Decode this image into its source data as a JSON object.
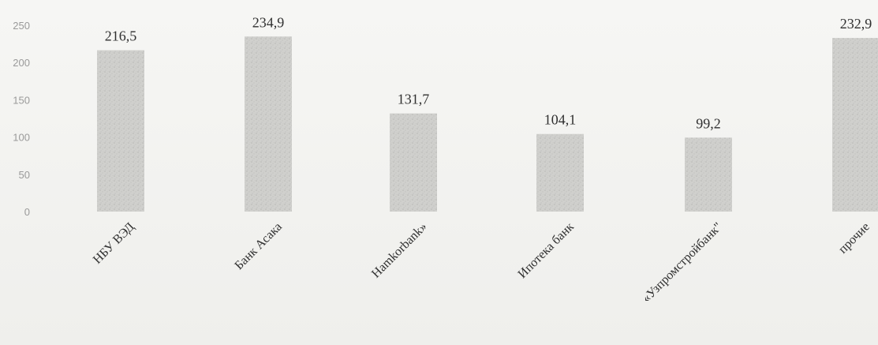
{
  "chart_data": {
    "type": "bar",
    "title": "",
    "xlabel": "",
    "ylabel": "",
    "categories": [
      "НБУ ВЭД",
      "Банк Асака",
      "Hamkorbank»",
      "Ипотека банк",
      "«Узпромстройбанк\"",
      "прочие"
    ],
    "values": [
      216.5,
      234.9,
      131.7,
      104.1,
      99.2,
      232.9
    ],
    "value_labels": [
      "216,5",
      "234,9",
      "131,7",
      "104,1",
      "99,2",
      "232,9"
    ],
    "ylim": [
      0,
      250
    ],
    "yticks": [
      0,
      50,
      100,
      150,
      200,
      250
    ],
    "ytick_labels": [
      "0",
      "50",
      "100",
      "150",
      "200",
      "250"
    ],
    "grid": false,
    "legend": "none",
    "colors": {
      "bar": "#cfcfcc",
      "bar_texture": "#b9b9b6",
      "tick_text": "#9a9a9a",
      "label_text": "#2f2f2f"
    }
  }
}
